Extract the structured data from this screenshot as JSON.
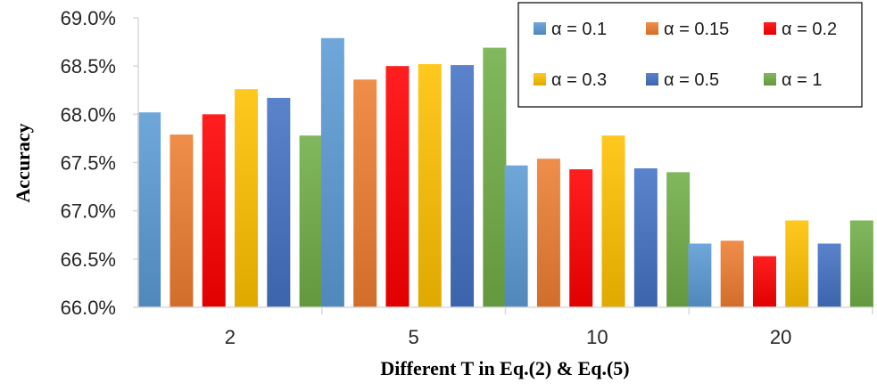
{
  "chart_data": {
    "type": "bar",
    "title": "",
    "xlabel": "Different T in Eq.(2) & Eq.(5)",
    "ylabel": "Accuracy",
    "ylim": [
      66.0,
      69.0
    ],
    "yticks": [
      "66.0%",
      "66.5%",
      "67.0%",
      "67.5%",
      "68.0%",
      "68.5%",
      "69.0%"
    ],
    "categories": [
      "2",
      "5",
      "10",
      "20"
    ],
    "grid": false,
    "legend_position": "top-right",
    "series": [
      {
        "name": "α = 0.1",
        "color": "#5B9BD5",
        "values": [
          68.02,
          68.79,
          67.47,
          66.66
        ]
      },
      {
        "name": "α = 0.15",
        "color": "#ED7D31",
        "values": [
          67.79,
          68.36,
          67.54,
          66.69
        ]
      },
      {
        "name": "α = 0.2",
        "color": "#FF0000",
        "values": [
          68.0,
          68.5,
          67.43,
          66.53
        ]
      },
      {
        "name": "α = 0.3",
        "color": "#FFC000",
        "values": [
          68.26,
          68.52,
          67.78,
          66.9
        ]
      },
      {
        "name": "α = 0.5",
        "color": "#4472C4",
        "values": [
          68.17,
          68.51,
          67.44,
          66.66
        ]
      },
      {
        "name": "α = 1",
        "color": "#70AD47",
        "values": [
          67.78,
          68.69,
          67.4,
          66.9
        ]
      }
    ]
  }
}
